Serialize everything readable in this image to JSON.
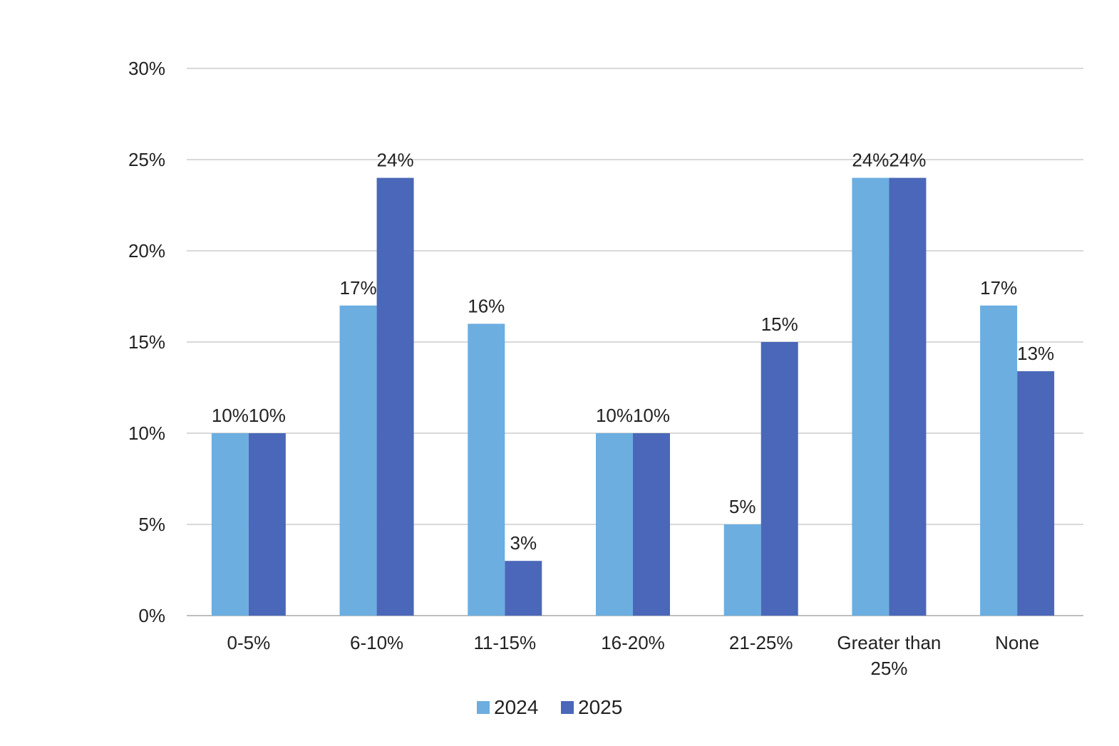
{
  "chart_data": {
    "type": "bar",
    "title": "",
    "xlabel": "",
    "ylabel": "",
    "ylim": [
      0,
      30
    ],
    "y_ticks": [
      "0%",
      "5%",
      "10%",
      "15%",
      "20%",
      "25%",
      "30%"
    ],
    "y_tick_values": [
      0,
      5,
      10,
      15,
      20,
      25,
      30
    ],
    "grid": true,
    "legend_position": "bottom-center",
    "categories": [
      "0-5%",
      "6-10%",
      "11-15%",
      "16-20%",
      "21-25%",
      "Greater than 25%",
      "None"
    ],
    "category_label_lines": [
      [
        "0-5%"
      ],
      [
        "6-10%"
      ],
      [
        "11-15%"
      ],
      [
        "16-20%"
      ],
      [
        "21-25%"
      ],
      [
        "Greater than",
        "25%"
      ],
      [
        "None"
      ]
    ],
    "series": [
      {
        "name": "2024",
        "color": "#6caee0",
        "values": [
          10,
          17,
          16,
          10,
          5,
          24,
          17
        ],
        "labels": [
          "10%",
          "17%",
          "16%",
          "10%",
          "5%",
          "24%",
          "17%"
        ]
      },
      {
        "name": "2025",
        "color": "#4a67b9",
        "values": [
          10,
          24,
          3,
          10,
          15,
          24,
          13.4
        ],
        "labels": [
          "10%",
          "24%",
          "3%",
          "10%",
          "15%",
          "24%",
          "13%"
        ]
      }
    ]
  },
  "colors": {
    "grid": "#d9d9d9",
    "axis": "#bfbfbf",
    "text": "#222222"
  }
}
